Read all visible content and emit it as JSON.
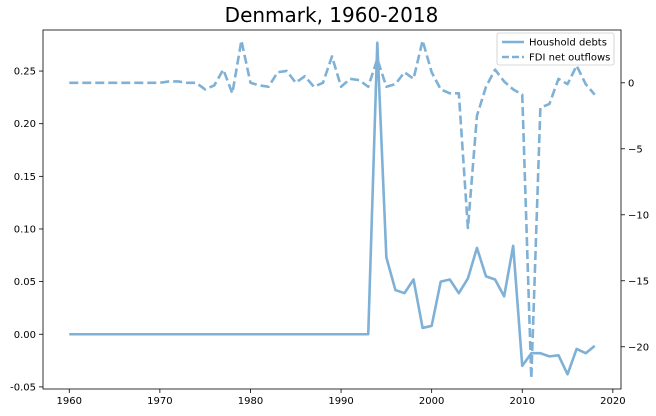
{
  "chart_data": {
    "type": "line",
    "title": "Denmark, 1960-2018",
    "xlabel": "",
    "ylabel_left": "",
    "ylabel_right": "",
    "xlim": [
      1957.1,
      2020.9
    ],
    "ylim_left": [
      -0.052,
      0.289
    ],
    "ylim_right": [
      -23.2,
      4.0
    ],
    "x_ticks": [
      1960,
      1970,
      1980,
      1990,
      2000,
      2010,
      2020
    ],
    "y_left_ticks": [
      -0.05,
      0.0,
      0.05,
      0.1,
      0.15,
      0.2,
      0.25
    ],
    "y_right_ticks": [
      0,
      -5,
      -10,
      -15,
      -20
    ],
    "legend_position": "upper-right",
    "color": "#7fb1d6",
    "series": [
      {
        "name": "Houshold debts",
        "axis": "left",
        "style": "solid",
        "x": [
          1960,
          1961,
          1962,
          1963,
          1964,
          1965,
          1966,
          1967,
          1968,
          1969,
          1970,
          1971,
          1972,
          1973,
          1974,
          1975,
          1976,
          1977,
          1978,
          1979,
          1980,
          1981,
          1982,
          1983,
          1984,
          1985,
          1986,
          1987,
          1988,
          1989,
          1990,
          1991,
          1992,
          1993,
          1994,
          1995,
          1996,
          1997,
          1998,
          1999,
          2000,
          2001,
          2002,
          2003,
          2004,
          2005,
          2006,
          2007,
          2008,
          2009,
          2010,
          2011,
          2012,
          2013,
          2014,
          2015,
          2016,
          2017,
          2018
        ],
        "values": [
          0,
          0,
          0,
          0,
          0,
          0,
          0,
          0,
          0,
          0,
          0,
          0,
          0,
          0,
          0,
          0,
          0,
          0,
          0,
          0,
          0,
          0,
          0,
          0,
          0,
          0,
          0,
          0,
          0,
          0,
          0,
          0,
          0,
          0,
          0.277,
          0.073,
          0.042,
          0.039,
          0.052,
          0.006,
          0.008,
          0.05,
          0.052,
          0.039,
          0.053,
          0.082,
          0.055,
          0.052,
          0.036,
          0.084,
          -0.03,
          -0.018,
          -0.018,
          -0.021,
          -0.02,
          -0.038,
          -0.014,
          -0.018,
          -0.011
        ]
      },
      {
        "name": "FDI net outflows",
        "axis": "right",
        "style": "dashed",
        "x": [
          1960,
          1961,
          1962,
          1963,
          1964,
          1965,
          1966,
          1967,
          1968,
          1969,
          1970,
          1971,
          1972,
          1973,
          1974,
          1975,
          1976,
          1977,
          1978,
          1979,
          1980,
          1981,
          1982,
          1983,
          1984,
          1985,
          1986,
          1987,
          1988,
          1989,
          1990,
          1991,
          1992,
          1993,
          1994,
          1995,
          1996,
          1997,
          1998,
          1999,
          2000,
          2001,
          2002,
          2003,
          2004,
          2005,
          2006,
          2007,
          2008,
          2009,
          2010,
          2011,
          2012,
          2013,
          2014,
          2015,
          2016,
          2017,
          2018
        ],
        "values": [
          0,
          0,
          0,
          0,
          0,
          0,
          0,
          0,
          0,
          0,
          0,
          0.1,
          0.1,
          0,
          0,
          -0.5,
          -0.2,
          1.0,
          -0.8,
          3.2,
          0,
          -0.2,
          -0.3,
          0.8,
          0.9,
          0,
          0.5,
          -0.3,
          0,
          2.0,
          -0.3,
          0.3,
          0.2,
          -0.3,
          1.8,
          -0.3,
          -0.1,
          0.8,
          0.3,
          3.2,
          0.8,
          -0.5,
          -0.8,
          -0.8,
          -11,
          -2.5,
          -0.3,
          1.0,
          0.1,
          -0.5,
          -0.9,
          -22.4,
          -1.9,
          -1.6,
          0.3,
          -0.1,
          1.3,
          -0.1,
          -0.9
        ]
      }
    ]
  }
}
